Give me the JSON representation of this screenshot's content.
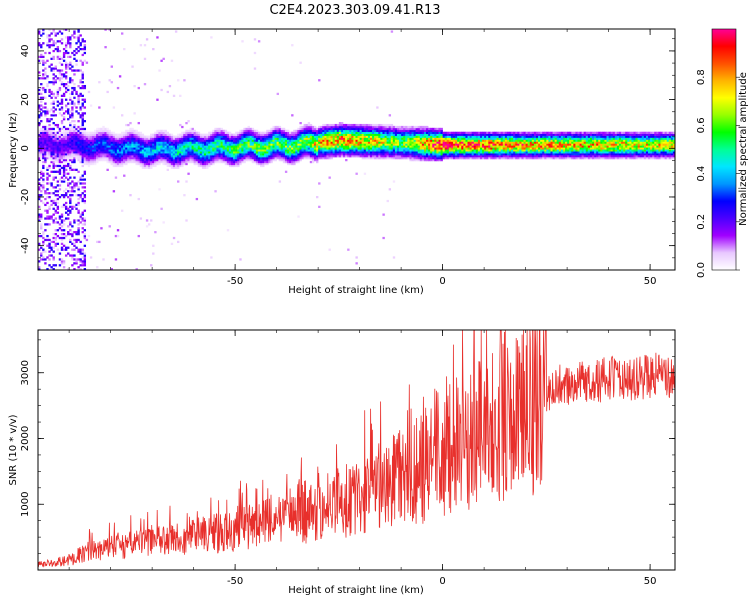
{
  "title": "C2E4.2023.303.09.41.R13",
  "chart_data": [
    {
      "type": "heatmap",
      "xlabel": "Height of straight line (km)",
      "ylabel": "Frequency (Hz)",
      "xlim": [
        -97.5,
        56
      ],
      "ylim": [
        -50,
        49
      ],
      "x_ticks": [
        -50,
        0,
        50
      ],
      "y_ticks": [
        -40,
        -20,
        0,
        20,
        40
      ],
      "colorbar": {
        "label": "Normalized spectral amplitude",
        "range": [
          0,
          1
        ],
        "ticks": [
          "0.0",
          "0.2",
          "0.4",
          "0.6",
          "0.8"
        ],
        "colormap": [
          "#ffffff",
          "#e8c8ff",
          "#a000ff",
          "#4b00ff",
          "#0000ff",
          "#0096ff",
          "#00e6ff",
          "#00ff96",
          "#00ff00",
          "#96ff00",
          "#ffff00",
          "#ffb400",
          "#ff5000",
          "#ff0000",
          "#ff0096"
        ]
      },
      "ridge": {
        "description_points": [
          {
            "x": -90,
            "freq": 1,
            "amp": 0.25
          },
          {
            "x": -70,
            "freq": -1,
            "amp": 0.4
          },
          {
            "x": -50,
            "freq": 0,
            "amp": 0.55
          },
          {
            "x": -35,
            "freq": 1,
            "amp": 0.6
          },
          {
            "x": -25,
            "freq": 3,
            "amp": 0.85
          },
          {
            "x": -10,
            "freq": 2,
            "amp": 0.6
          },
          {
            "x": 0,
            "freq": 1,
            "amp": 0.95
          },
          {
            "x": 20,
            "freq": 1,
            "amp": 0.8
          },
          {
            "x": 56,
            "freq": 1,
            "amp": 0.7
          }
        ]
      }
    },
    {
      "type": "line",
      "xlabel": "Height of straight line (km)",
      "ylabel": "SNR (10 * v/v)",
      "xlim": [
        -97.5,
        56
      ],
      "ylim": [
        0,
        3650
      ],
      "x_ticks": [
        -50,
        0,
        50
      ],
      "y_ticks": [
        1000,
        2000,
        3000
      ],
      "series": [
        {
          "color": "#e8302c",
          "trend": [
            {
              "x": -97.5,
              "y": 80
            },
            {
              "x": -90,
              "y": 150
            },
            {
              "x": -85,
              "y": 300
            },
            {
              "x": -70,
              "y": 420
            },
            {
              "x": -55,
              "y": 550
            },
            {
              "x": -45,
              "y": 700
            },
            {
              "x": -35,
              "y": 850
            },
            {
              "x": -25,
              "y": 1050
            },
            {
              "x": -15,
              "y": 1250
            },
            {
              "x": -5,
              "y": 1550
            },
            {
              "x": 0,
              "y": 1800
            },
            {
              "x": 10,
              "y": 2100
            },
            {
              "x": 20,
              "y": 2400
            },
            {
              "x": 25,
              "y": 2700
            },
            {
              "x": 30,
              "y": 2850
            },
            {
              "x": 40,
              "y": 2900
            },
            {
              "x": 50,
              "y": 2950
            },
            {
              "x": 56,
              "y": 2950
            }
          ],
          "peak": {
            "x": 14,
            "y": 3650
          }
        }
      ]
    }
  ]
}
